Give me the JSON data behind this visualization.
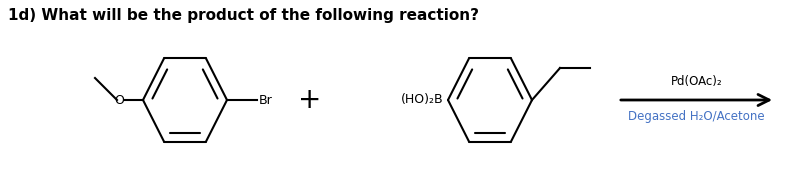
{
  "title": "1d) What will be the product of the following reaction?",
  "title_fontsize": 11,
  "title_fontweight": "bold",
  "background_color": "#ffffff",
  "text_color": "#000000",
  "arrow_above": "Pd(OAc)₂",
  "arrow_below": "Degassed H₂O/Acetone",
  "arrow_below_color": "#4472c4",
  "line_color": "#000000",
  "line_width": 1.5,
  "fig_width": 8.08,
  "fig_height": 1.72,
  "dpi": 100
}
